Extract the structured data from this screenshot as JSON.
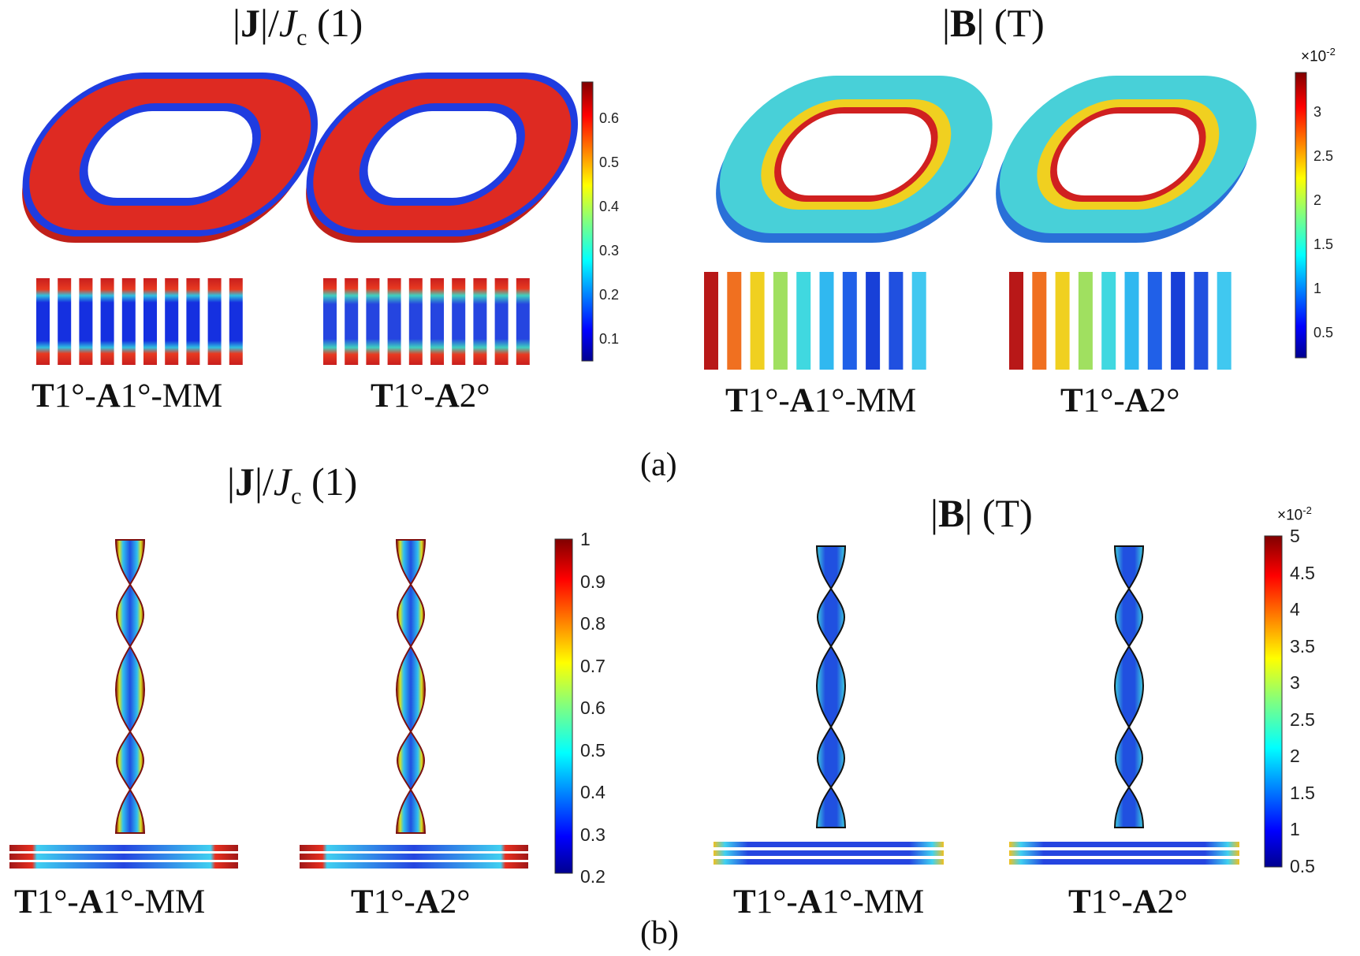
{
  "panel_a": {
    "label": "(a)",
    "j": {
      "title_norm": "|",
      "title_J": "J",
      "title_mid": "|/",
      "title_Jc": "J",
      "title_sub": "c",
      "title_unit": " (1)",
      "colorbar_ticks": [
        "0.6",
        "0.5",
        "0.4",
        "0.3",
        "0.2",
        "0.1"
      ],
      "cases": [
        {
          "T": "T",
          "t_rest": "1°-",
          "A": "A",
          "a_rest": "1°-MM"
        },
        {
          "T": "T",
          "t_rest": "1°-",
          "A": "A",
          "a_rest": "2°"
        }
      ]
    },
    "b": {
      "title_open": "|",
      "title_B": "B",
      "title_close": "|",
      "title_unit": " (T)",
      "multiplier": "×10",
      "multiplier_exp": "-2",
      "colorbar_ticks": [
        "3",
        "2.5",
        "2",
        "1.5",
        "1",
        "0.5"
      ],
      "cases": [
        {
          "T": "T",
          "t_rest": "1°-",
          "A": "A",
          "a_rest": "1°-MM"
        },
        {
          "T": "T",
          "t_rest": "1°-",
          "A": "A",
          "a_rest": "2°"
        }
      ]
    }
  },
  "panel_b": {
    "label": "(b)",
    "j": {
      "title_norm": "|",
      "title_J": "J",
      "title_mid": "|/",
      "title_Jc": "J",
      "title_sub": "c",
      "title_unit": " (1)",
      "colorbar_ticks": [
        "1",
        "0.9",
        "0.8",
        "0.7",
        "0.6",
        "0.5",
        "0.4",
        "0.3",
        "0.2"
      ],
      "cases": [
        {
          "T": "T",
          "t_rest": "1°-",
          "A": "A",
          "a_rest": "1°-MM"
        },
        {
          "T": "T",
          "t_rest": "1°-",
          "A": "A",
          "a_rest": "2°"
        }
      ]
    },
    "b": {
      "title_open": "|",
      "title_B": "B",
      "title_close": "|",
      "title_unit": " (T)",
      "multiplier": "×10",
      "multiplier_exp": "-2",
      "colorbar_ticks": [
        "5",
        "4.5",
        "4",
        "3.5",
        "3",
        "2.5",
        "2",
        "1.5",
        "1",
        "0.5"
      ],
      "cases": [
        {
          "T": "T",
          "t_rest": "1°-",
          "A": "A",
          "a_rest": "1°-MM"
        },
        {
          "T": "T",
          "t_rest": "1°-",
          "A": "A",
          "a_rest": "2°"
        }
      ]
    }
  },
  "colors": {
    "jet": [
      "#00008f",
      "#0000ff",
      "#0080ff",
      "#00ffff",
      "#80ff80",
      "#ffff00",
      "#ff8000",
      "#ff0000",
      "#800000"
    ],
    "coil_red": "#d9231f",
    "coil_blue": "#2040e0",
    "field_cyan": "#40d8e8"
  }
}
